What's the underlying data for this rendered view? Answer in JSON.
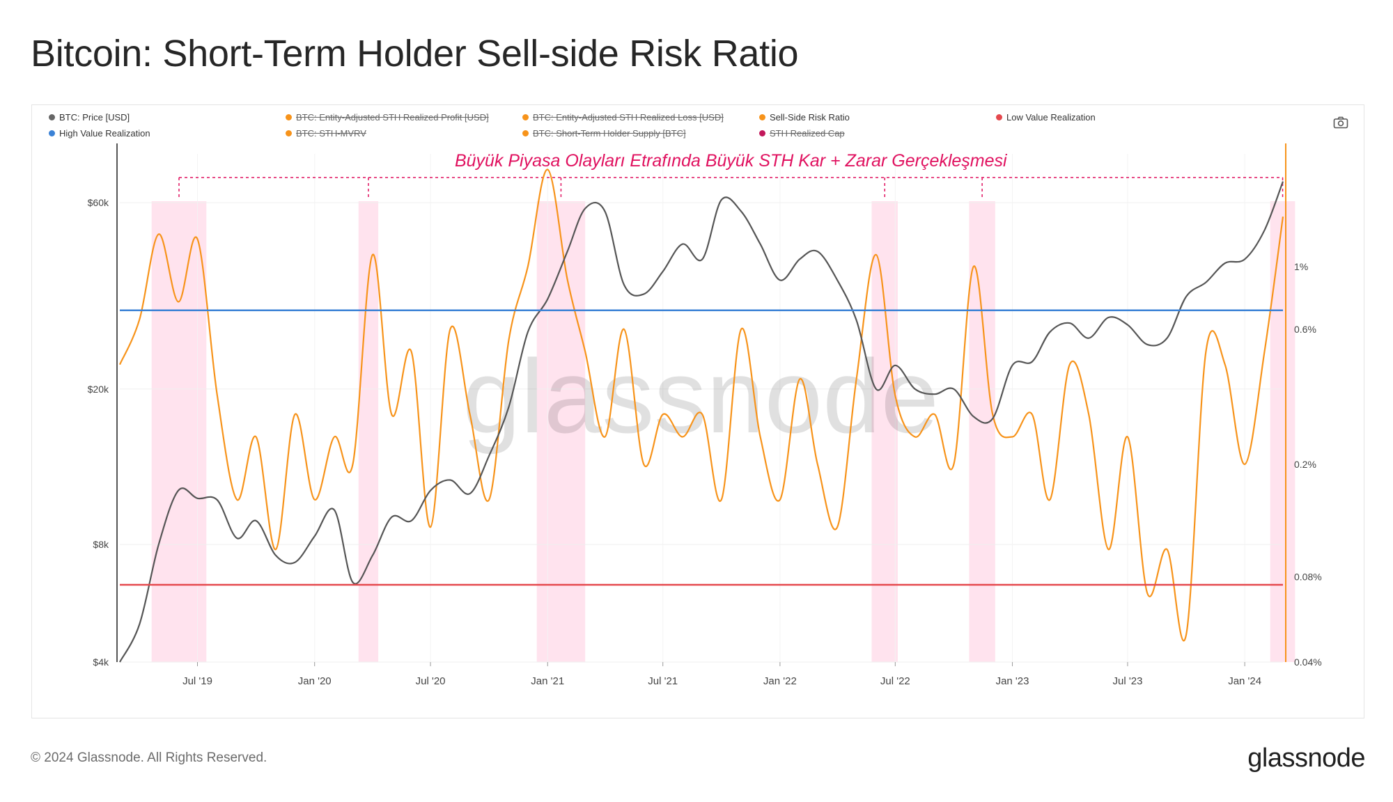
{
  "title": "Bitcoin: Short-Term Holder Sell-side Risk Ratio",
  "legend": [
    {
      "label": "BTC: Price [USD]",
      "color": "#666666",
      "active": true
    },
    {
      "label": "BTC: Entity-Adjusted STH Realized Profit [USD]",
      "color": "#f7931a",
      "active": false
    },
    {
      "label": "BTC: Entity-Adjusted STH Realized Loss [USD]",
      "color": "#f7931a",
      "active": false
    },
    {
      "label": "Sell-Side Risk Ratio",
      "color": "#f7931a",
      "active": true
    },
    {
      "label": "Low Value Realization",
      "color": "#e5484d",
      "active": true
    },
    {
      "label": "High Value Realization",
      "color": "#3b82d6",
      "active": true
    },
    {
      "label": "BTC: STH-MVRV",
      "color": "#f7931a",
      "active": false
    },
    {
      "label": "BTC: Short-Term Holder Supply [BTC]",
      "color": "#f7931a",
      "active": false
    },
    {
      "label": "STH Realized Cap",
      "color": "#c2185b",
      "active": false
    }
  ],
  "annotation": "Büyük Piyasa Olayları Etrafında Büyük STH Kar + Zarar Gerçekleşmesi",
  "watermark": "glassnode",
  "footer": {
    "copyright": "© 2024 Glassnode. All Rights Reserved.",
    "brand": "glassnode"
  },
  "chart_data": {
    "type": "line",
    "x_tick_labels": [
      "Jul '19",
      "Jan '20",
      "Jul '20",
      "Jan '21",
      "Jul '21",
      "Jan '22",
      "Jul '22",
      "Jan '23",
      "Jul '23",
      "Jan '24"
    ],
    "x_range": [
      "2019-03",
      "2024-03"
    ],
    "left_axis": {
      "scale": "log",
      "tick_labels": [
        "$4k",
        "$8k",
        "$20k",
        "$60k"
      ],
      "tick_values": [
        4000,
        8000,
        20000,
        60000
      ],
      "range": [
        4000,
        80000
      ]
    },
    "right_axis": {
      "scale": "log",
      "tick_labels": [
        "0.04%",
        "0.08%",
        "0.2%",
        "0.6%",
        "1%"
      ],
      "tick_values": [
        0.04,
        0.08,
        0.2,
        0.6,
        1.0
      ],
      "range": [
        0.04,
        2.5
      ]
    },
    "reference_lines": [
      {
        "name": "High Value Realization",
        "axis": "right",
        "value": 0.7,
        "color": "#3b82d6"
      },
      {
        "name": "Low Value Realization",
        "axis": "right",
        "value": 0.075,
        "color": "#e5484d"
      }
    ],
    "highlight_periods": [
      [
        "2019-04-20",
        "2019-07-15"
      ],
      [
        "2020-03-10",
        "2020-04-10"
      ],
      [
        "2020-12-15",
        "2021-03-01"
      ],
      [
        "2022-05-25",
        "2022-07-05"
      ],
      [
        "2022-10-25",
        "2022-12-05"
      ],
      [
        "2024-02-10",
        "2024-03-20"
      ]
    ],
    "series": [
      {
        "name": "BTC: Price [USD]",
        "axis": "left",
        "color": "#555555",
        "x": [
          "2019-03",
          "2019-04",
          "2019-05",
          "2019-06",
          "2019-07",
          "2019-08",
          "2019-09",
          "2019-10",
          "2019-11",
          "2019-12",
          "2020-01",
          "2020-02",
          "2020-03",
          "2020-04",
          "2020-05",
          "2020-06",
          "2020-07",
          "2020-08",
          "2020-09",
          "2020-10",
          "2020-11",
          "2020-12",
          "2021-01",
          "2021-02",
          "2021-03",
          "2021-04",
          "2021-05",
          "2021-06",
          "2021-07",
          "2021-08",
          "2021-09",
          "2021-10",
          "2021-11",
          "2021-12",
          "2022-01",
          "2022-02",
          "2022-03",
          "2022-04",
          "2022-05",
          "2022-06",
          "2022-07",
          "2022-08",
          "2022-09",
          "2022-10",
          "2022-11",
          "2022-12",
          "2023-01",
          "2023-02",
          "2023-03",
          "2023-04",
          "2023-05",
          "2023-06",
          "2023-07",
          "2023-08",
          "2023-09",
          "2023-10",
          "2023-11",
          "2023-12",
          "2024-01",
          "2024-02",
          "2024-03"
        ],
        "y": [
          4000,
          5000,
          8000,
          11000,
          10500,
          10400,
          8300,
          9200,
          7500,
          7200,
          8400,
          9800,
          6400,
          7500,
          9400,
          9200,
          11000,
          11700,
          10800,
          13500,
          18000,
          28000,
          34000,
          45000,
          58000,
          57000,
          37000,
          35000,
          40000,
          47000,
          43000,
          61000,
          57000,
          47000,
          38000,
          43000,
          45000,
          38000,
          30000,
          20000,
          23000,
          20000,
          19400,
          20000,
          17000,
          16800,
          23000,
          23500,
          28000,
          29500,
          27000,
          30500,
          29200,
          26000,
          27000,
          34500,
          37500,
          42000,
          43000,
          51000,
          68000
        ]
      },
      {
        "name": "Sell-Side Risk Ratio",
        "axis": "right",
        "color": "#f7931a",
        "x": [
          "2019-03",
          "2019-04",
          "2019-05",
          "2019-06",
          "2019-07",
          "2019-08",
          "2019-09",
          "2019-10",
          "2019-11",
          "2019-12",
          "2020-01",
          "2020-02",
          "2020-03",
          "2020-04",
          "2020-05",
          "2020-06",
          "2020-07",
          "2020-08",
          "2020-09",
          "2020-10",
          "2020-11",
          "2020-12",
          "2021-01",
          "2021-02",
          "2021-03",
          "2021-04",
          "2021-05",
          "2021-06",
          "2021-07",
          "2021-08",
          "2021-09",
          "2021-10",
          "2021-11",
          "2021-12",
          "2022-01",
          "2022-02",
          "2022-03",
          "2022-04",
          "2022-05",
          "2022-06",
          "2022-07",
          "2022-08",
          "2022-09",
          "2022-10",
          "2022-11",
          "2022-12",
          "2023-01",
          "2023-02",
          "2023-03",
          "2023-04",
          "2023-05",
          "2023-06",
          "2023-07",
          "2023-08",
          "2023-09",
          "2023-10",
          "2023-11",
          "2023-12",
          "2024-01",
          "2024-02",
          "2024-03"
        ],
        "y": [
          0.45,
          0.65,
          1.3,
          0.75,
          1.25,
          0.35,
          0.15,
          0.25,
          0.1,
          0.3,
          0.15,
          0.25,
          0.2,
          1.1,
          0.3,
          0.5,
          0.12,
          0.6,
          0.3,
          0.15,
          0.55,
          1.0,
          2.2,
          0.9,
          0.5,
          0.25,
          0.6,
          0.2,
          0.3,
          0.25,
          0.3,
          0.15,
          0.6,
          0.25,
          0.15,
          0.4,
          0.2,
          0.12,
          0.4,
          1.1,
          0.35,
          0.25,
          0.3,
          0.2,
          1.0,
          0.3,
          0.25,
          0.3,
          0.15,
          0.45,
          0.3,
          0.1,
          0.25,
          0.07,
          0.1,
          0.05,
          0.5,
          0.45,
          0.2,
          0.5,
          1.5
        ]
      }
    ]
  }
}
